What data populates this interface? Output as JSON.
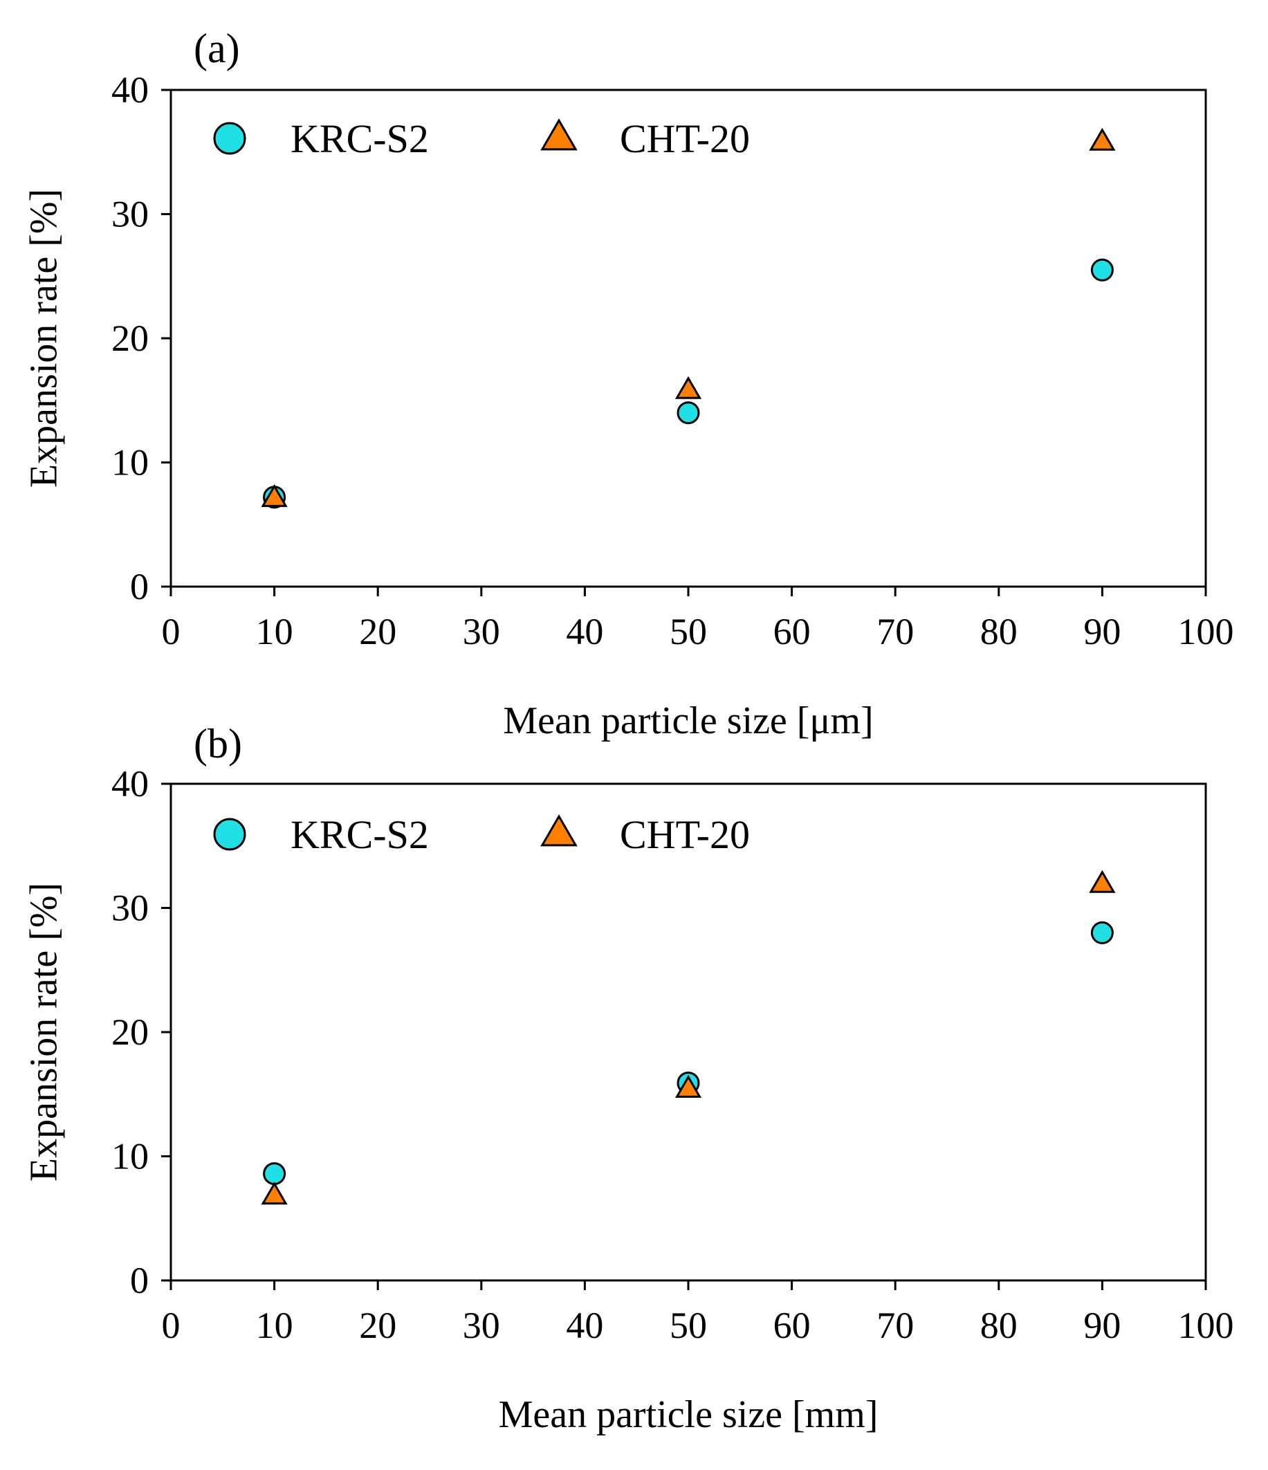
{
  "chart_data": [
    {
      "type": "scatter",
      "panel_label": "(a)",
      "xlabel": "Mean particle size [μm]",
      "ylabel": "Expansion rate [%]",
      "xlim": [
        0,
        100
      ],
      "ylim": [
        0,
        40
      ],
      "xticks": [
        0,
        10,
        20,
        30,
        40,
        50,
        60,
        70,
        80,
        90,
        100
      ],
      "yticks": [
        0,
        10,
        20,
        30,
        40
      ],
      "grid": false,
      "legend_position": "top-left",
      "series": [
        {
          "name": "KRC-S2",
          "marker": "circle",
          "color": "#20E0E6",
          "x": [
            10,
            50,
            90
          ],
          "y": [
            7.2,
            14.0,
            25.5
          ]
        },
        {
          "name": "CHT-20",
          "marker": "triangle",
          "color": "#FF8000",
          "x": [
            10,
            50,
            90
          ],
          "y": [
            7.1,
            15.8,
            35.8
          ]
        }
      ]
    },
    {
      "type": "scatter",
      "panel_label": "(b)",
      "xlabel": "Mean particle size [mm]",
      "ylabel": "Expansion rate [%]",
      "xlim": [
        0,
        100
      ],
      "ylim": [
        0,
        40
      ],
      "xticks": [
        0,
        10,
        20,
        30,
        40,
        50,
        60,
        70,
        80,
        90,
        100
      ],
      "yticks": [
        0,
        10,
        20,
        30,
        40
      ],
      "grid": false,
      "legend_position": "top-left",
      "series": [
        {
          "name": "KRC-S2",
          "marker": "circle",
          "color": "#20E0E6",
          "x": [
            10,
            50,
            90
          ],
          "y": [
            8.6,
            15.9,
            28.0
          ]
        },
        {
          "name": "CHT-20",
          "marker": "triangle",
          "color": "#FF8000",
          "x": [
            10,
            50,
            90
          ],
          "y": [
            6.8,
            15.4,
            31.9
          ]
        }
      ]
    }
  ]
}
